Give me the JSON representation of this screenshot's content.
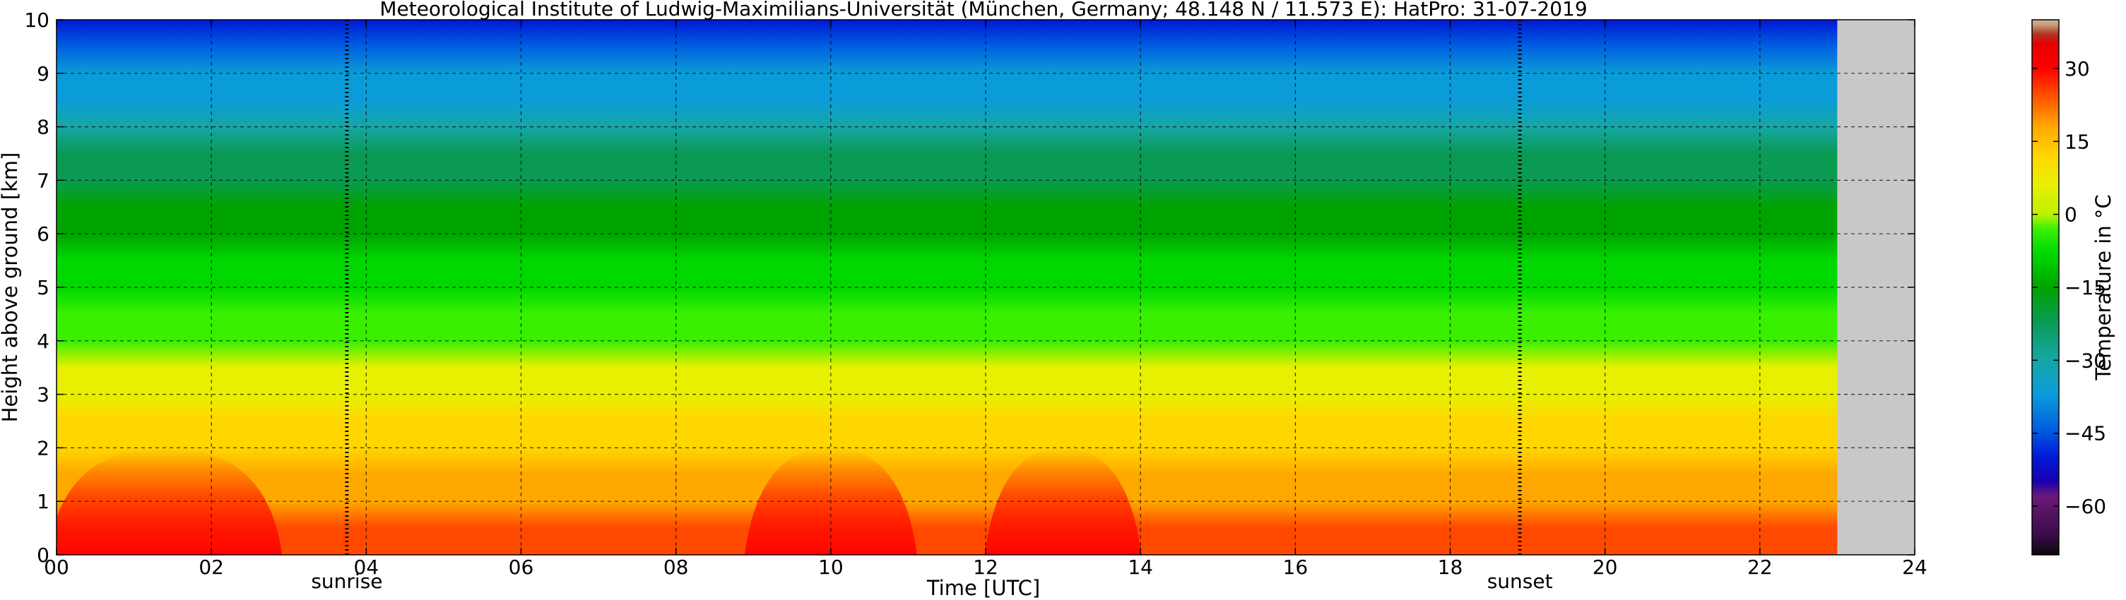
{
  "chart_data": {
    "type": "heatmap",
    "title": "Meteorological Institute of Ludwig-Maximilians-Universität (München, Germany; 48.148 N / 11.573 E):    HatPro: 31-07-2019",
    "xlabel": "Time [UTC]",
    "ylabel": "Height above ground [km]",
    "xlim": [
      0,
      24
    ],
    "ylim": [
      0,
      10
    ],
    "xticks": [
      0,
      2,
      4,
      6,
      8,
      10,
      12,
      14,
      16,
      18,
      20,
      22,
      24
    ],
    "xtick_labels": [
      "00",
      "02",
      "04",
      "06",
      "08",
      "10",
      "12",
      "14",
      "16",
      "18",
      "20",
      "22",
      "24"
    ],
    "yticks": [
      0,
      1,
      2,
      3,
      4,
      5,
      6,
      7,
      8,
      9,
      10
    ],
    "ytick_labels": [
      "0",
      "1",
      "2",
      "3",
      "4",
      "5",
      "6",
      "7",
      "8",
      "9",
      "10"
    ],
    "grid": true,
    "data_end_hour": 23.0,
    "no_data_color": "#c8c8c8",
    "events": [
      {
        "label": "sunrise",
        "hour": 3.75
      },
      {
        "label": "sunset",
        "hour": 18.9
      }
    ],
    "surface_temperature_peaks_C": [
      {
        "hour_from": 0.8,
        "hour_to": 2.0,
        "value": 31
      },
      {
        "hour_from": 9.8,
        "hour_to": 10.2,
        "value": 31
      },
      {
        "hour_from": 12.9,
        "hour_to": 13.1,
        "value": 30
      }
    ],
    "temperature_profile_C": [
      {
        "height_km": 0,
        "value": 22
      },
      {
        "height_km": 1,
        "value": 17
      },
      {
        "height_km": 2,
        "value": 10
      },
      {
        "height_km": 3,
        "value": 5
      },
      {
        "height_km": 4,
        "value": -3
      },
      {
        "height_km": 5,
        "value": -10
      },
      {
        "height_km": 6,
        "value": -17
      },
      {
        "height_km": 7,
        "value": -25
      },
      {
        "height_km": 8,
        "value": -34
      },
      {
        "height_km": 9,
        "value": -42
      },
      {
        "height_km": 10,
        "value": -50
      }
    ],
    "colorbar": {
      "label": "Temperature in °C",
      "range": [
        -70,
        40
      ],
      "ticks": [
        30,
        15,
        0,
        -15,
        -30,
        -45,
        -60
      ],
      "tick_labels": [
        "30",
        "15",
        "0",
        "−15",
        "−30",
        "−45",
        "−60"
      ]
    }
  }
}
